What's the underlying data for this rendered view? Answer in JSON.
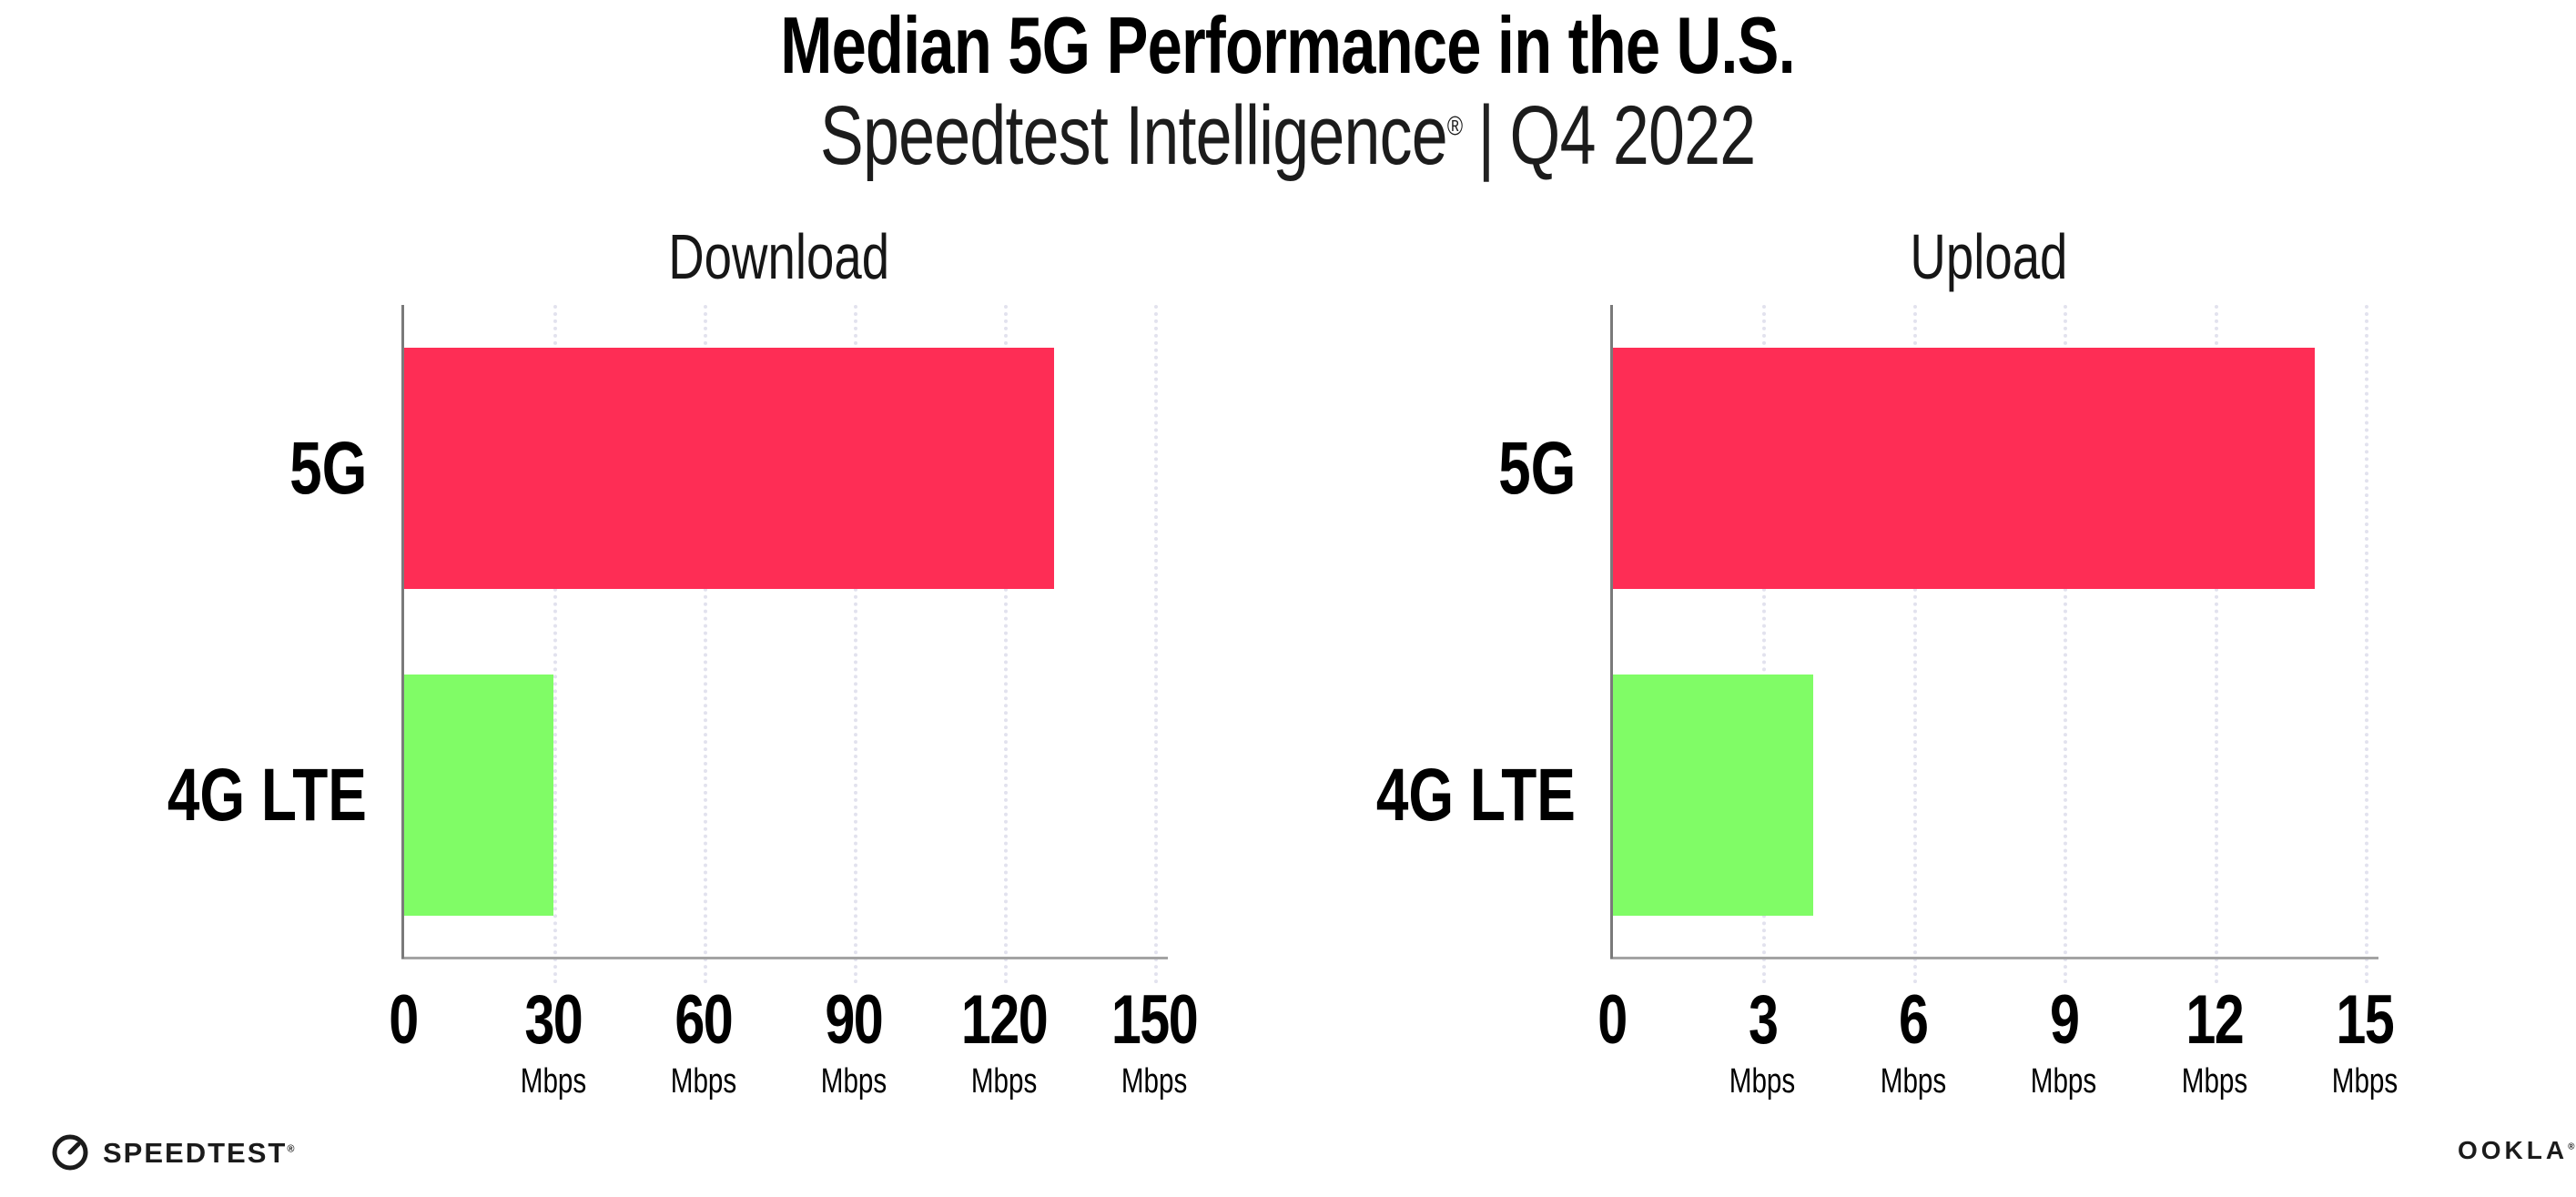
{
  "header": {
    "title": "Median 5G Performance in the U.S.",
    "subtitle": {
      "brand": "Speedtest Intelligence",
      "reg_mark": "®",
      "separator": "|",
      "period": "Q4 2022"
    }
  },
  "chart_data": [
    {
      "type": "bar",
      "orientation": "horizontal",
      "title": "Download",
      "categories": [
        "5G",
        "4G LTE"
      ],
      "values": [
        130,
        30
      ],
      "value_unit": "Mbps",
      "xlim": [
        0,
        150
      ],
      "xticks": [
        0,
        30,
        60,
        90,
        120,
        150
      ],
      "xtick_unit": "Mbps",
      "bar_colors": [
        "#fe2d55",
        "#80fc66"
      ],
      "grid": "vertical-dotted",
      "legend": "none"
    },
    {
      "type": "bar",
      "orientation": "horizontal",
      "title": "Upload",
      "categories": [
        "5G",
        "4G LTE"
      ],
      "values": [
        14,
        4
      ],
      "value_unit": "Mbps",
      "xlim": [
        0,
        15
      ],
      "xticks": [
        0,
        3,
        6,
        9,
        12,
        15
      ],
      "xtick_unit": "Mbps",
      "bar_colors": [
        "#fe2d55",
        "#80fc66"
      ],
      "grid": "vertical-dotted",
      "legend": "none"
    }
  ],
  "footer": {
    "speedtest_wordmark": "SPEEDTEST",
    "speedtest_reg_mark": "®",
    "ookla_wordmark": "OOKLA",
    "ookla_reg_mark": "®"
  },
  "colors": {
    "bar_5g": "#fe2d55",
    "bar_4g_lte": "#80fc66",
    "y_axis_line": "#7a7a7a",
    "x_axis_line": "#a3a3a3",
    "gridline_dots": "#e2e2ee",
    "title_text": "#000000",
    "subtitle_text": "#1c1c1c"
  }
}
